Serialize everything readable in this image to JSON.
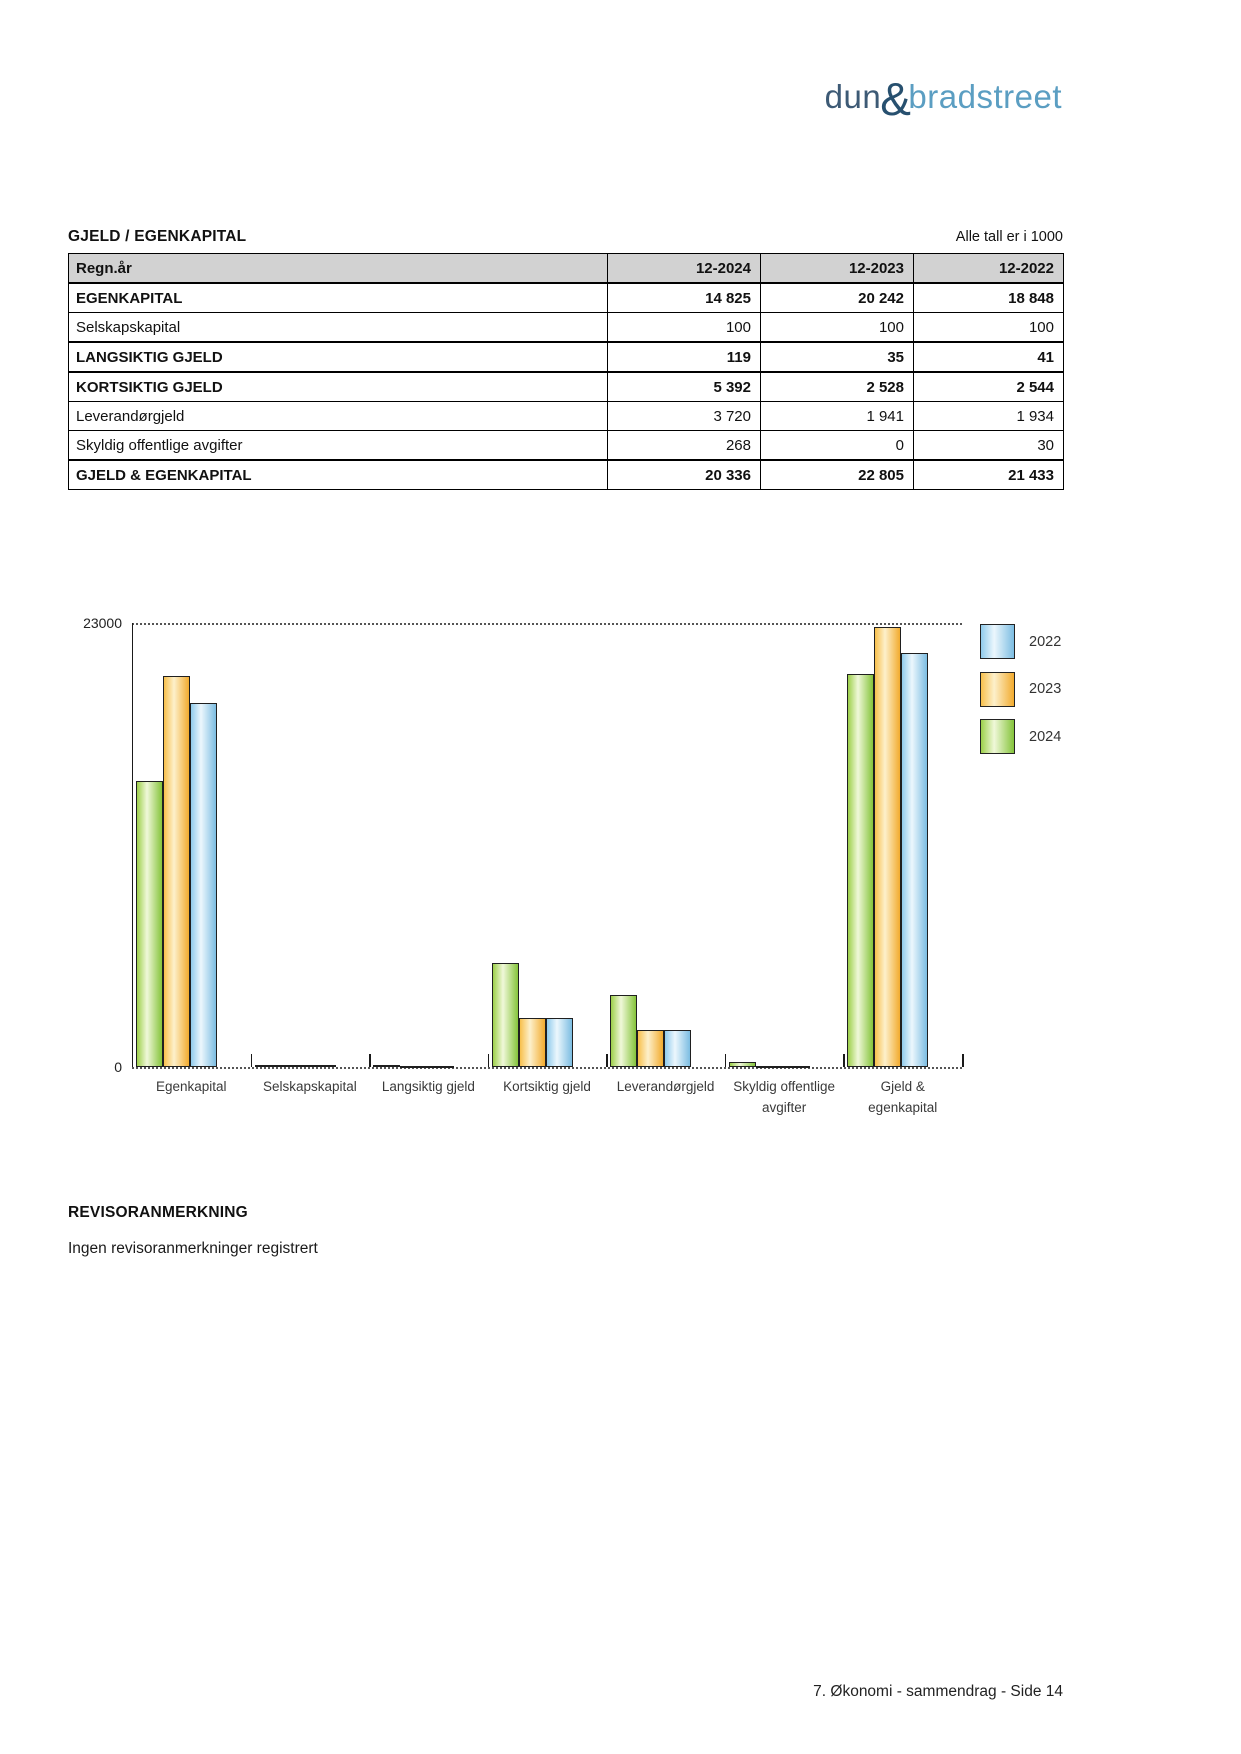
{
  "logo": {
    "part1": "dun",
    "amp": "&",
    "part2": "bradstreet",
    "color_part1": "#3d5a75",
    "color_amp": "#27506f",
    "color_part2": "#5b9ec2"
  },
  "section": {
    "title": "GJELD / EGENKAPITAL",
    "note": "Alle tall er i 1000"
  },
  "table": {
    "header": [
      "Regn.år",
      "12-2024",
      "12-2023",
      "12-2022"
    ],
    "rows": [
      {
        "label": "EGENKAPITAL",
        "bold": true,
        "values": [
          "14 825",
          "20 242",
          "18 848"
        ]
      },
      {
        "label": "Selskapskapital",
        "bold": false,
        "values": [
          "100",
          "100",
          "100"
        ]
      },
      {
        "label": "LANGSIKTIG GJELD",
        "bold": true,
        "values": [
          "119",
          "35",
          "41"
        ]
      },
      {
        "label": "KORTSIKTIG GJELD",
        "bold": true,
        "values": [
          "5 392",
          "2 528",
          "2 544"
        ]
      },
      {
        "label": "Leverandørgjeld",
        "bold": false,
        "values": [
          "3 720",
          "1 941",
          "1 934"
        ]
      },
      {
        "label": "Skyldig offentlige avgifter",
        "bold": false,
        "values": [
          "268",
          "0",
          "30"
        ]
      },
      {
        "label": "GJELD & EGENKAPITAL",
        "bold": true,
        "values": [
          "20 336",
          "22 805",
          "21 433"
        ]
      }
    ]
  },
  "chart_data": {
    "type": "bar",
    "title": "",
    "categories": [
      "Egenkapital",
      "Selskapskapital",
      "Langsiktig gjeld",
      "Kortsiktig gjeld",
      "Leverandørgjeld",
      "Skyldig offentlige\navgifter",
      "Gjeld &\negenkapital"
    ],
    "series": [
      {
        "name": "2024",
        "values": [
          14825,
          100,
          119,
          5392,
          3720,
          268,
          20336
        ],
        "colors": {
          "edge": "#9dd04a",
          "light": "#f0f8d9",
          "dark": "#85c43b"
        }
      },
      {
        "name": "2023",
        "values": [
          20242,
          100,
          35,
          2528,
          1941,
          0,
          22805
        ],
        "colors": {
          "edge": "#f8c04c",
          "light": "#fdf0cb",
          "dark": "#f2ab2e"
        }
      },
      {
        "name": "2022",
        "values": [
          18848,
          100,
          41,
          2544,
          1934,
          30,
          21433
        ],
        "colors": {
          "edge": "#90cbec",
          "light": "#ecf7fd",
          "dark": "#7cbde2"
        }
      }
    ],
    "ylim": [
      0,
      23000
    ],
    "yticks": [
      {
        "value": 23000,
        "label": "23000"
      },
      {
        "value": 0,
        "label": "0"
      }
    ],
    "legend_order": [
      "2022",
      "2023",
      "2024"
    ],
    "legend_position": "right-top",
    "grid": "dotted guide at ymax and dotted baseline"
  },
  "revisor": {
    "heading": "REVISORANMERKNING",
    "text": "Ingen revisoranmerkninger registrert"
  },
  "page": {
    "footer": "7. Økonomi - sammendrag - Side 14"
  }
}
